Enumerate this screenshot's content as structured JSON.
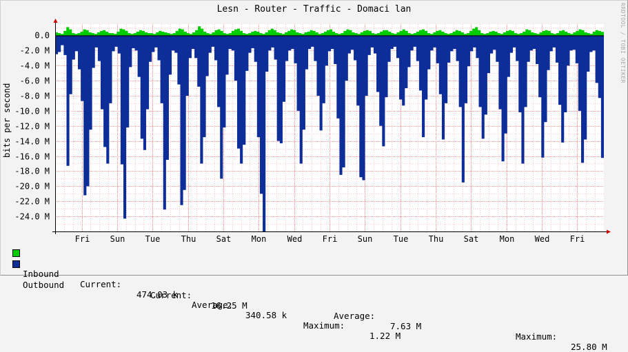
{
  "title": "Lesn - Router - Traffic - Domaci lan",
  "watermark": "RRDTOOL / TOBI OETIKER",
  "colors": {
    "inbound": "#00cc00",
    "inbound_edge": "#55ee55",
    "outbound": "#0d2d99",
    "background": "#f3f3f3",
    "grid": "#ff9999",
    "axis": "#cc0000"
  },
  "legend": {
    "inbound": {
      "name": "Inbound",
      "current_label": "Current:",
      "current": "474.03 k",
      "average_label": "Average:",
      "average": "340.58 k",
      "maximum_label": "Maximum:",
      "maximum": "1.22 M"
    },
    "outbound": {
      "name": "Outbound",
      "current_label": "Current:",
      "current": "16.25 M",
      "average_label": "Average:",
      "average": "7.63 M",
      "maximum_label": "Maximum:",
      "maximum": "25.80 M"
    }
  },
  "chart_data": {
    "type": "area",
    "title": "Lesn - Router - Traffic - Domaci lan",
    "ylabel": "bits per second",
    "ylim": [
      -26000000,
      1500000
    ],
    "y_ticks": [
      {
        "value": 0,
        "label": "0.0"
      },
      {
        "value": -2000000,
        "label": "-2.0 M"
      },
      {
        "value": -4000000,
        "label": "-4.0 M"
      },
      {
        "value": -6000000,
        "label": "-6.0 M"
      },
      {
        "value": -8000000,
        "label": "-8.0 M"
      },
      {
        "value": -10000000,
        "label": "-10.0 M"
      },
      {
        "value": -12000000,
        "label": "-12.0 M"
      },
      {
        "value": -14000000,
        "label": "-14.0 M"
      },
      {
        "value": -16000000,
        "label": "-16.0 M"
      },
      {
        "value": -18000000,
        "label": "-18.0 M"
      },
      {
        "value": -20000000,
        "label": "-20.0 M"
      },
      {
        "value": -22000000,
        "label": "-22.0 M"
      },
      {
        "value": -24000000,
        "label": "-24.0 M"
      }
    ],
    "x_days": 15.5,
    "x_ticks": [
      {
        "day": 0.75,
        "label": "Fri"
      },
      {
        "day": 1.75,
        "label": "Sun"
      },
      {
        "day": 2.75,
        "label": "Tue"
      },
      {
        "day": 3.75,
        "label": "Thu"
      },
      {
        "day": 4.75,
        "label": "Sat"
      },
      {
        "day": 5.75,
        "label": "Mon"
      },
      {
        "day": 6.75,
        "label": "Wed"
      },
      {
        "day": 7.75,
        "label": "Fri"
      },
      {
        "day": 8.75,
        "label": "Sun"
      },
      {
        "day": 9.75,
        "label": "Tue"
      },
      {
        "day": 10.75,
        "label": "Thu"
      },
      {
        "day": 11.75,
        "label": "Sat"
      },
      {
        "day": 12.75,
        "label": "Mon"
      },
      {
        "day": 13.75,
        "label": "Wed"
      },
      {
        "day": 14.75,
        "label": "Fri"
      }
    ],
    "grid": true,
    "series": [
      {
        "name": "Inbound",
        "sign": "positive",
        "values": [
          0.4,
          0.3,
          0.2,
          0.6,
          1.1,
          0.8,
          0.3,
          0.2,
          0.3,
          0.5,
          0.8,
          0.7,
          0.4,
          0.3,
          0.2,
          0.4,
          0.6,
          0.7,
          0.5,
          0.3,
          0.3,
          0.2,
          0.5,
          0.9,
          0.8,
          0.6,
          0.3,
          0.2,
          0.3,
          0.5,
          0.7,
          0.6,
          0.4,
          0.3,
          0.3,
          0.2,
          0.4,
          0.6,
          0.5,
          0.4,
          0.3,
          0.2,
          0.3,
          0.6,
          0.9,
          0.8,
          0.5,
          0.3,
          0.2,
          0.4,
          0.7,
          1.2,
          0.9,
          0.5,
          0.3,
          0.2,
          0.4,
          0.7,
          0.8,
          0.6,
          0.3,
          0.2,
          0.3,
          0.6,
          0.8,
          0.9,
          0.6,
          0.3,
          0.2,
          0.3,
          0.5,
          0.6,
          0.5,
          0.3,
          0.2,
          0.4,
          0.7,
          0.9,
          0.7,
          0.4,
          0.3,
          0.2,
          0.4,
          0.6,
          0.8,
          0.7,
          0.4,
          0.3,
          0.2,
          0.4,
          0.5,
          0.7,
          0.6,
          0.4,
          0.2,
          0.3,
          0.5,
          0.7,
          0.8,
          0.5,
          0.3,
          0.2,
          0.3,
          0.6,
          0.8,
          0.7,
          0.4,
          0.3,
          0.2,
          0.4,
          0.6,
          0.7,
          0.6,
          0.3,
          0.2,
          0.3,
          0.5,
          0.7,
          0.7,
          0.5,
          0.3,
          0.2,
          0.4,
          0.6,
          0.8,
          0.6,
          0.3,
          0.2,
          0.3,
          0.5,
          0.7,
          0.8,
          0.6,
          0.3,
          0.2,
          0.4,
          0.6,
          0.7,
          0.5,
          0.3,
          0.2,
          0.3,
          0.5,
          0.7,
          0.6,
          0.4,
          0.2,
          0.3,
          0.6,
          0.9,
          1.1,
          0.7,
          0.3,
          0.2,
          0.3,
          0.5,
          0.6,
          0.5,
          0.3,
          0.2,
          0.4,
          0.6,
          0.7,
          0.6,
          0.3,
          0.2,
          0.3,
          0.5,
          0.8,
          0.7,
          0.4,
          0.3,
          0.2,
          0.4,
          0.6,
          0.7,
          0.6,
          0.3,
          0.2,
          0.3,
          0.6,
          0.7,
          0.5,
          0.3,
          0.2,
          0.4,
          0.6,
          0.8,
          0.7,
          0.4,
          0.3,
          0.2,
          0.5,
          0.7,
          0.6,
          0.47
        ]
      },
      {
        "name": "Outbound",
        "sign": "negative",
        "values": [
          2.5,
          2.2,
          1.3,
          2.6,
          17.3,
          7.8,
          3.2,
          2.1,
          4.5,
          8.7,
          21.2,
          20.0,
          12.5,
          4.3,
          1.6,
          3.4,
          9.8,
          14.8,
          17.0,
          9.0,
          2.1,
          1.5,
          2.4,
          17.1,
          24.3,
          12.2,
          4.2,
          1.7,
          2.0,
          5.5,
          13.7,
          15.2,
          9.8,
          3.5,
          2.2,
          1.6,
          3.3,
          9.0,
          23.1,
          16.5,
          5.2,
          2.0,
          2.3,
          6.5,
          22.5,
          20.5,
          8.0,
          3.0,
          1.8,
          3.0,
          6.8,
          17.0,
          13.5,
          5.4,
          2.3,
          1.5,
          3.3,
          9.5,
          19.0,
          12.2,
          5.2,
          1.8,
          2.0,
          6.0,
          15.0,
          17.0,
          14.5,
          4.7,
          2.3,
          1.7,
          3.5,
          13.5,
          21.0,
          26.0,
          4.8,
          2.0,
          1.6,
          3.2,
          14.0,
          14.3,
          8.8,
          3.4,
          2.0,
          1.8,
          3.7,
          10.0,
          17.0,
          12.5,
          4.5,
          1.8,
          1.5,
          3.4,
          8.0,
          12.6,
          9.0,
          4.0,
          2.1,
          1.8,
          3.8,
          11.0,
          18.5,
          17.5,
          6.0,
          2.4,
          1.9,
          3.3,
          9.3,
          18.8,
          19.2,
          8.0,
          2.6,
          1.6,
          2.4,
          7.5,
          12.0,
          14.7,
          8.2,
          3.5,
          1.8,
          1.5,
          3.0,
          8.5,
          9.3,
          7.0,
          4.2,
          2.0,
          1.5,
          3.4,
          7.3,
          13.5,
          8.5,
          4.5,
          2.0,
          1.6,
          3.7,
          7.8,
          13.8,
          9.0,
          3.6,
          2.1,
          1.8,
          3.4,
          9.5,
          19.5,
          9.0,
          4.1,
          2.1,
          1.6,
          3.0,
          9.5,
          13.7,
          10.5,
          5.0,
          2.4,
          1.9,
          3.5,
          9.8,
          16.7,
          13.0,
          5.5,
          2.3,
          1.6,
          3.4,
          10.2,
          17.0,
          9.5,
          3.5,
          2.0,
          1.8,
          3.8,
          8.2,
          16.2,
          11.5,
          4.6,
          2.1,
          1.6,
          3.6,
          9.2,
          14.2,
          10.2,
          4.0,
          2.0,
          1.9,
          3.7,
          10.0,
          16.9,
          13.8,
          4.8,
          2.2,
          2.0,
          6.3,
          8.3,
          16.25
        ]
      }
    ]
  }
}
